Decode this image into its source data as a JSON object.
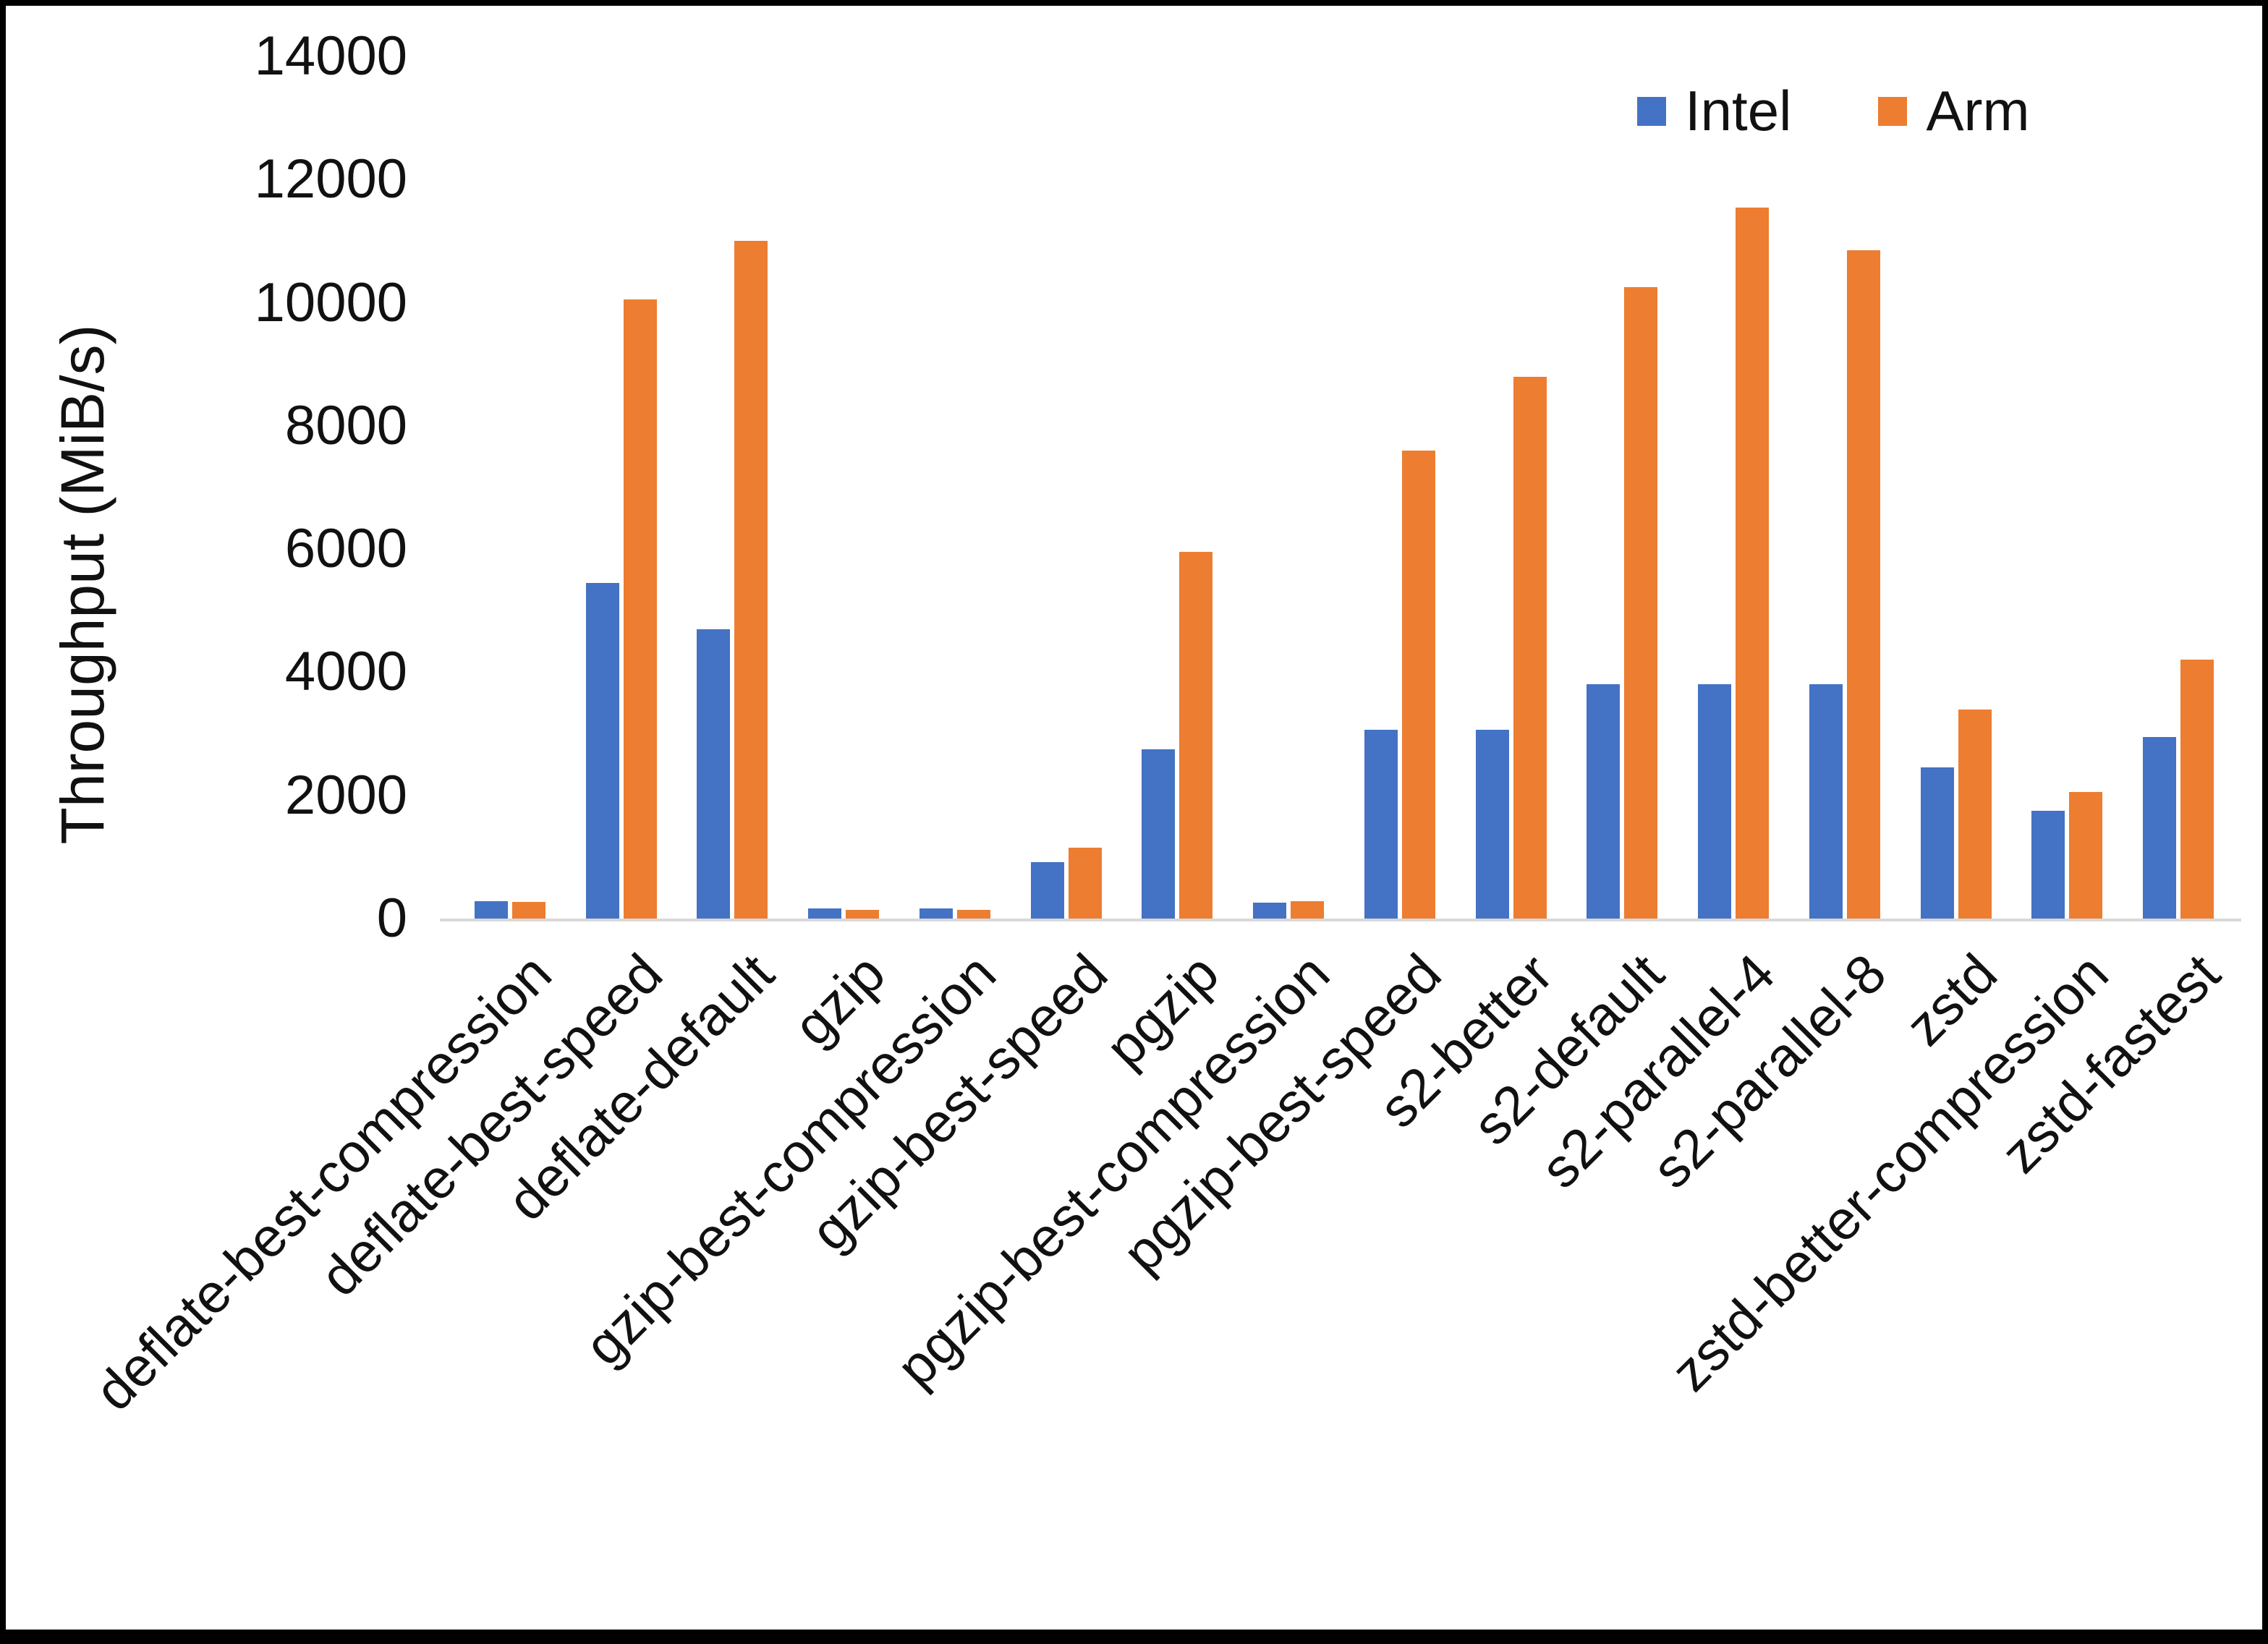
{
  "chart_data": {
    "type": "bar",
    "title": "",
    "xlabel": "",
    "ylabel": "Throughput (MiB/s)",
    "ylim": [
      0,
      14000
    ],
    "ytick_step": 2000,
    "grid": false,
    "legend_position": "top-right",
    "baseline_color": "#d9d9d9",
    "categories": [
      "deflate-best-compression",
      "deflate-best-speed",
      "deflate-default",
      "gzip",
      "gzip-best-compression",
      "gzip-best-speed",
      "pgzip",
      "pgzip-best-compression",
      "pgzip-best-speed",
      "s2-better",
      "s2-default",
      "s2-parallel-4",
      "s2-parallel-8",
      "zstd",
      "zstd-better-compression",
      "zstd-fastest"
    ],
    "series": [
      {
        "name": "Intel",
        "color": "#4472C4",
        "values": [
          280,
          5450,
          4700,
          160,
          160,
          920,
          2750,
          260,
          3060,
          3060,
          3800,
          3800,
          3800,
          2450,
          1750,
          2950
        ]
      },
      {
        "name": "Arm",
        "color": "#ED7D31",
        "values": [
          270,
          10050,
          11000,
          140,
          140,
          1150,
          5950,
          280,
          7600,
          8800,
          10250,
          11550,
          10850,
          3400,
          2050,
          4200
        ]
      }
    ]
  }
}
